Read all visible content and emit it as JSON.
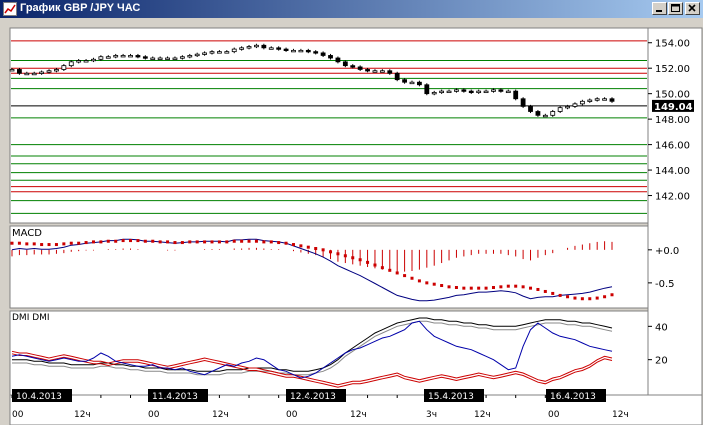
{
  "window": {
    "title": "График GBP /JPY  ЧАС",
    "price_tag": "149.04",
    "colors": {
      "titlebar": "#0a246a",
      "bear": "#000000",
      "macd_signal": "#cc0000",
      "dmi_plus": "#0000aa",
      "dmi_minus": "#cc0000"
    }
  },
  "price_panel": {
    "y_ticks": [
      "154.00",
      "152.00",
      "150.00",
      "148.00",
      "146.00",
      "144.00",
      "142.00"
    ],
    "y_tick_values": [
      154,
      152,
      150,
      148,
      146,
      144,
      142
    ],
    "red_levels": [
      154.15,
      152.0,
      151.6,
      142.3,
      142.7
    ],
    "green_levels": [
      152.6,
      151.2,
      150.4,
      148.1,
      146.0,
      145.1,
      144.5,
      143.8,
      143.2,
      141.6,
      140.6
    ],
    "current_price": 149.04,
    "ylim": [
      140.0,
      155.0
    ]
  },
  "macd_panel": {
    "label": "MACD",
    "y_ticks": [
      "+0.0",
      "-0.5"
    ],
    "y_tick_values": [
      0,
      -0.5
    ],
    "ylim": [
      -0.85,
      0.3
    ]
  },
  "dmi_panel": {
    "label": "DMI DMI",
    "y_ticks": [
      "40",
      "20"
    ],
    "y_tick_values": [
      40,
      20
    ],
    "ylim": [
      0,
      48
    ]
  },
  "date_labels": [
    "10.4.2013",
    "11.4.2013",
    "12.4.2013",
    "15.4.2013",
    "16.4.2013"
  ],
  "hour_ticks": [
    "00",
    "12ч",
    "00",
    "12ч",
    "00",
    "12ч",
    "3ч",
    "12ч",
    "00",
    "12ч"
  ],
  "chart_data": {
    "type": "candlestick",
    "price_close": [
      151.9,
      151.6,
      151.6,
      151.6,
      151.7,
      151.8,
      151.9,
      152.2,
      152.5,
      152.6,
      152.6,
      152.7,
      152.9,
      152.9,
      153.0,
      153.0,
      153.0,
      152.9,
      152.8,
      152.8,
      152.8,
      152.8,
      152.8,
      152.9,
      153.0,
      153.1,
      153.2,
      153.3,
      153.3,
      153.3,
      153.5,
      153.6,
      153.7,
      153.8,
      153.6,
      153.6,
      153.5,
      153.4,
      153.4,
      153.4,
      153.3,
      153.2,
      153.0,
      152.8,
      152.5,
      152.2,
      152.1,
      151.9,
      151.8,
      151.8,
      151.8,
      151.6,
      151.1,
      150.9,
      150.9,
      150.7,
      150.0,
      150.1,
      150.2,
      150.2,
      150.3,
      150.2,
      150.1,
      150.2,
      150.2,
      150.3,
      150.2,
      150.2,
      149.6,
      149.0,
      148.6,
      148.3,
      148.3,
      148.6,
      148.9,
      149.0,
      149.2,
      149.4,
      149.5,
      149.6,
      149.6,
      149.4
    ],
    "macd_histogram": [
      -0.1,
      -0.08,
      -0.08,
      -0.07,
      -0.07,
      -0.07,
      -0.06,
      -0.05,
      -0.03,
      -0.02,
      -0.01,
      -0.01,
      0.0,
      0.01,
      0.01,
      0.02,
      0.02,
      0.01,
      0.0,
      0.0,
      0.0,
      -0.01,
      -0.01,
      0.0,
      0.0,
      0.0,
      0.01,
      0.01,
      0.01,
      0.0,
      0.02,
      0.02,
      0.03,
      0.03,
      0.02,
      0.01,
      0.01,
      0.0,
      -0.02,
      -0.04,
      -0.06,
      -0.08,
      -0.11,
      -0.14,
      -0.18,
      -0.2,
      -0.22,
      -0.24,
      -0.26,
      -0.28,
      -0.3,
      -0.32,
      -0.34,
      -0.33,
      -0.32,
      -0.3,
      -0.27,
      -0.24,
      -0.2,
      -0.16,
      -0.12,
      -0.1,
      -0.08,
      -0.06,
      -0.06,
      -0.06,
      -0.06,
      -0.08,
      -0.1,
      -0.14,
      -0.16,
      -0.12,
      -0.08,
      -0.05,
      0.0,
      0.03,
      0.06,
      0.08,
      0.1,
      0.12,
      0.13,
      0.12
    ],
    "macd_signal": [
      0.1,
      0.1,
      0.09,
      0.09,
      0.08,
      0.08,
      0.08,
      0.09,
      0.1,
      0.1,
      0.11,
      0.12,
      0.12,
      0.13,
      0.13,
      0.14,
      0.14,
      0.14,
      0.13,
      0.13,
      0.12,
      0.12,
      0.11,
      0.11,
      0.12,
      0.12,
      0.12,
      0.12,
      0.12,
      0.12,
      0.13,
      0.13,
      0.13,
      0.13,
      0.12,
      0.12,
      0.11,
      0.1,
      0.08,
      0.06,
      0.04,
      0.02,
      0.0,
      -0.03,
      -0.06,
      -0.09,
      -0.12,
      -0.15,
      -0.19,
      -0.23,
      -0.27,
      -0.31,
      -0.35,
      -0.39,
      -0.43,
      -0.47,
      -0.5,
      -0.52,
      -0.54,
      -0.56,
      -0.57,
      -0.58,
      -0.58,
      -0.58,
      -0.58,
      -0.57,
      -0.56,
      -0.55,
      -0.55,
      -0.56,
      -0.58,
      -0.6,
      -0.63,
      -0.66,
      -0.69,
      -0.71,
      -0.73,
      -0.74,
      -0.74,
      -0.73,
      -0.71,
      -0.68
    ],
    "macd_line": [
      0.0,
      0.02,
      0.01,
      0.02,
      0.01,
      0.01,
      0.02,
      0.04,
      0.07,
      0.08,
      0.1,
      0.11,
      0.12,
      0.14,
      0.14,
      0.16,
      0.16,
      0.15,
      0.13,
      0.13,
      0.12,
      0.11,
      0.1,
      0.11,
      0.12,
      0.12,
      0.13,
      0.13,
      0.13,
      0.12,
      0.15,
      0.15,
      0.16,
      0.16,
      0.14,
      0.13,
      0.12,
      0.1,
      0.06,
      0.02,
      -0.02,
      -0.06,
      -0.11,
      -0.17,
      -0.24,
      -0.29,
      -0.34,
      -0.39,
      -0.45,
      -0.51,
      -0.57,
      -0.63,
      -0.69,
      -0.72,
      -0.75,
      -0.77,
      -0.77,
      -0.76,
      -0.74,
      -0.72,
      -0.69,
      -0.68,
      -0.66,
      -0.64,
      -0.64,
      -0.63,
      -0.62,
      -0.63,
      -0.65,
      -0.7,
      -0.74,
      -0.72,
      -0.71,
      -0.71,
      -0.69,
      -0.68,
      -0.67,
      -0.66,
      -0.64,
      -0.61,
      -0.58,
      -0.56
    ],
    "dmi_plus": [
      22,
      23,
      22,
      21,
      20,
      19,
      20,
      21,
      20,
      19,
      19,
      21,
      24,
      22,
      19,
      18,
      17,
      16,
      16,
      17,
      15,
      15,
      14,
      15,
      13,
      12,
      11,
      13,
      15,
      17,
      16,
      18,
      19,
      21,
      20,
      17,
      14,
      13,
      11,
      9,
      10,
      12,
      15,
      18,
      21,
      24,
      26,
      27,
      29,
      31,
      33,
      34,
      36,
      38,
      42,
      43,
      38,
      34,
      32,
      30,
      28,
      27,
      26,
      24,
      22,
      20,
      17,
      14,
      15,
      28,
      38,
      42,
      39,
      36,
      34,
      33,
      32,
      30,
      28,
      27,
      26,
      25
    ],
    "dmi_minus": [
      25,
      24,
      24,
      23,
      22,
      21,
      22,
      23,
      22,
      21,
      20,
      19,
      19,
      18,
      19,
      20,
      20,
      20,
      19,
      18,
      17,
      16,
      17,
      18,
      19,
      20,
      21,
      20,
      19,
      18,
      17,
      16,
      15,
      15,
      14,
      13,
      12,
      11,
      11,
      10,
      9,
      8,
      7,
      6,
      5,
      6,
      7,
      7,
      8,
      9,
      10,
      11,
      12,
      10,
      9,
      8,
      9,
      10,
      11,
      10,
      9,
      10,
      11,
      12,
      11,
      10,
      11,
      12,
      13,
      12,
      10,
      8,
      7,
      9,
      10,
      12,
      14,
      15,
      17,
      20,
      22,
      21
    ],
    "adx": [
      20,
      20,
      20,
      19,
      19,
      18,
      18,
      18,
      17,
      17,
      17,
      17,
      18,
      18,
      17,
      17,
      16,
      16,
      15,
      15,
      15,
      14,
      14,
      14,
      14,
      13,
      13,
      13,
      13,
      14,
      14,
      14,
      15,
      15,
      15,
      15,
      14,
      14,
      13,
      13,
      13,
      14,
      15,
      17,
      20,
      24,
      27,
      30,
      33,
      36,
      38,
      40,
      42,
      43,
      44,
      45,
      45,
      44,
      44,
      43,
      43,
      42,
      42,
      41,
      41,
      40,
      40,
      40,
      40,
      41,
      42,
      43,
      44,
      44,
      44,
      43,
      43,
      42,
      42,
      41,
      40,
      39
    ]
  }
}
